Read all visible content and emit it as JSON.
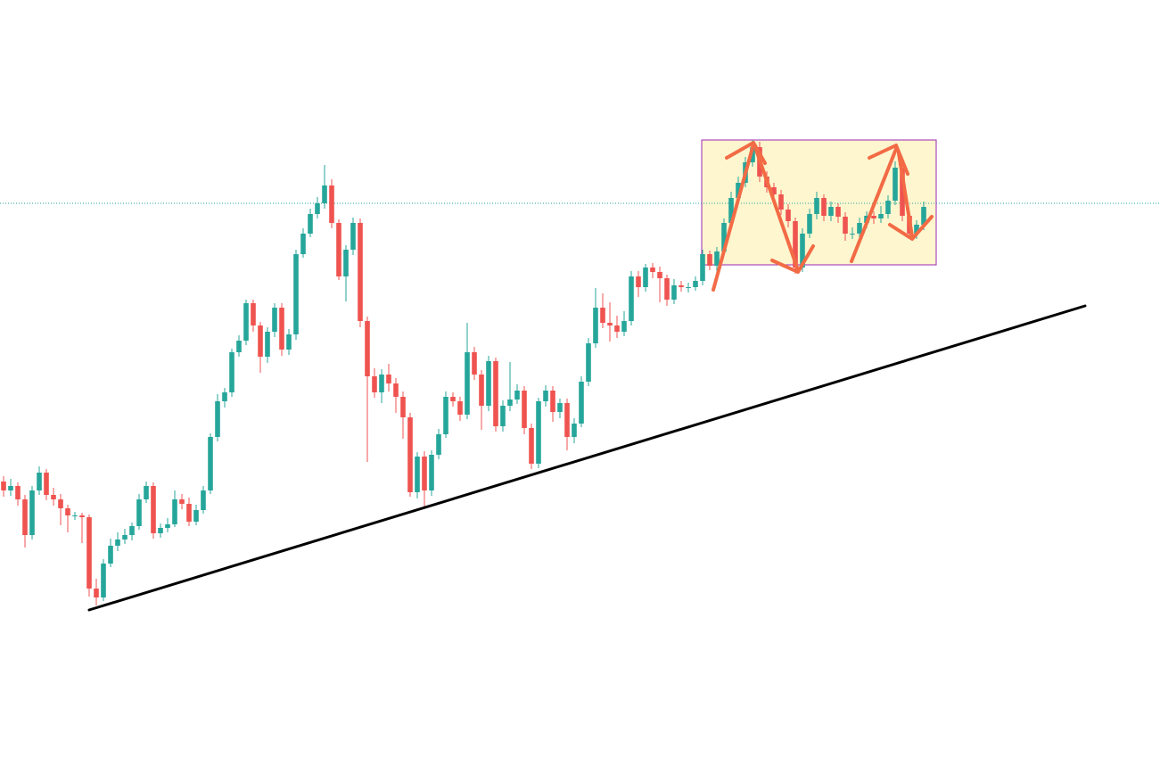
{
  "chart_data": {
    "type": "candlestick",
    "xlim": [
      -0.5,
      162.125
    ],
    "ylim": [
      0,
      859
    ],
    "up_color": "#26a69a",
    "down_color": "#ef5350",
    "open": [
      319,
      309,
      314,
      299,
      259,
      309,
      329,
      304,
      299,
      289,
      281,
      281,
      279,
      199,
      189,
      227,
      247,
      254,
      259,
      269,
      299,
      314,
      261,
      267,
      271,
      299,
      294,
      274,
      287,
      309,
      369,
      409,
      419,
      464,
      477,
      519,
      494,
      459,
      487,
      514,
      467,
      484,
      574,
      597,
      619,
      631,
      651,
      609,
      549,
      579,
      609,
      499,
      437,
      419,
      439,
      429,
      414,
      391,
      307,
      347,
      309,
      349,
      372,
      414,
      409,
      394,
      464,
      439,
      404,
      454,
      381,
      404,
      411,
      421,
      379,
      339,
      409,
      421,
      397,
      407,
      369,
      384,
      431,
      474,
      514,
      497,
      494,
      487,
      499,
      549,
      537,
      559,
      554,
      547,
      523,
      539,
      537,
      537,
      544,
      574,
      561,
      577,
      609,
      637,
      654,
      677,
      694,
      661,
      649,
      641,
      624,
      611,
      559,
      597,
      619,
      637,
      617,
      627,
      616,
      597,
      597,
      609,
      617,
      614,
      619,
      634,
      671,
      617,
      597,
      607
    ],
    "high": [
      325,
      322,
      318,
      304,
      314,
      336,
      333,
      312,
      305,
      293,
      285,
      284,
      282,
      210,
      232,
      255,
      262,
      266,
      273,
      305,
      319,
      318,
      272,
      278,
      309,
      305,
      301,
      293,
      314,
      373,
      417,
      424,
      468,
      483,
      523,
      523,
      498,
      492,
      519,
      519,
      490,
      579,
      603,
      625,
      638,
      674,
      658,
      613,
      584,
      615,
      614,
      504,
      446,
      445,
      451,
      435,
      420,
      396,
      352,
      353,
      354,
      378,
      420,
      419,
      414,
      497,
      470,
      444,
      460,
      458,
      410,
      453,
      428,
      426,
      384,
      413,
      427,
      426,
      412,
      412,
      390,
      437,
      480,
      536,
      530,
      520,
      505,
      510,
      555,
      555,
      563,
      564,
      560,
      551,
      546,
      544,
      542,
      549,
      579,
      578,
      582,
      614,
      644,
      661,
      683,
      702,
      700,
      667,
      654,
      646,
      630,
      615,
      603,
      625,
      644,
      641,
      633,
      631,
      621,
      604,
      615,
      622,
      622,
      628,
      640,
      678,
      676,
      621,
      612,
      633
    ],
    "low": [
      302,
      303,
      292,
      245,
      254,
      304,
      298,
      292,
      270,
      262,
      276,
      250,
      190,
      180,
      185,
      223,
      241,
      249,
      253,
      265,
      295,
      255,
      256,
      262,
      268,
      288,
      269,
      270,
      283,
      305,
      364,
      402,
      414,
      459,
      472,
      487,
      441,
      452,
      481,
      460,
      461,
      478,
      570,
      593,
      614,
      625,
      603,
      545,
      521,
      573,
      492,
      341,
      413,
      407,
      420,
      396,
      367,
      302,
      300,
      290,
      303,
      344,
      368,
      403,
      387,
      389,
      433,
      377,
      398,
      375,
      375,
      398,
      406,
      372,
      333,
      334,
      403,
      386,
      390,
      354,
      362,
      380,
      426,
      469,
      491,
      476,
      480,
      482,
      494,
      526,
      532,
      547,
      520,
      516,
      518,
      532,
      531,
      533,
      539,
      556,
      548,
      572,
      604,
      632,
      649,
      672,
      655,
      643,
      634,
      618,
      604,
      552,
      554,
      592,
      613,
      611,
      611,
      609,
      589,
      591,
      592,
      603,
      608,
      609,
      614,
      629,
      611,
      591,
      591,
      601
    ],
    "close": [
      309,
      314,
      299,
      259,
      309,
      329,
      304,
      299,
      289,
      281,
      281,
      279,
      199,
      189,
      227,
      247,
      254,
      259,
      269,
      299,
      314,
      261,
      267,
      271,
      299,
      294,
      274,
      287,
      309,
      369,
      409,
      419,
      464,
      477,
      519,
      494,
      459,
      487,
      514,
      467,
      484,
      574,
      597,
      619,
      631,
      651,
      609,
      549,
      579,
      609,
      499,
      437,
      419,
      439,
      429,
      414,
      391,
      307,
      347,
      309,
      349,
      372,
      414,
      409,
      394,
      464,
      439,
      404,
      454,
      381,
      404,
      411,
      421,
      379,
      339,
      409,
      421,
      397,
      407,
      369,
      384,
      431,
      474,
      514,
      497,
      494,
      487,
      499,
      549,
      537,
      559,
      554,
      547,
      523,
      539,
      537,
      537,
      544,
      574,
      561,
      577,
      609,
      637,
      654,
      677,
      694,
      661,
      649,
      641,
      624,
      611,
      559,
      597,
      619,
      637,
      617,
      627,
      616,
      597,
      597,
      609,
      617,
      614,
      619,
      634,
      671,
      617,
      597,
      607,
      627
    ],
    "level": {
      "value": 631,
      "color": "#26a69a"
    },
    "trendline": {
      "x": [
        12,
        151.625
      ],
      "y": [
        175,
        516
      ],
      "color": "#000000"
    },
    "box": {
      "x": [
        97.875,
        130.75
      ],
      "y": [
        562,
        702
      ],
      "fill": "#fdf6cf",
      "stroke": "#9c27b0"
    }
  }
}
